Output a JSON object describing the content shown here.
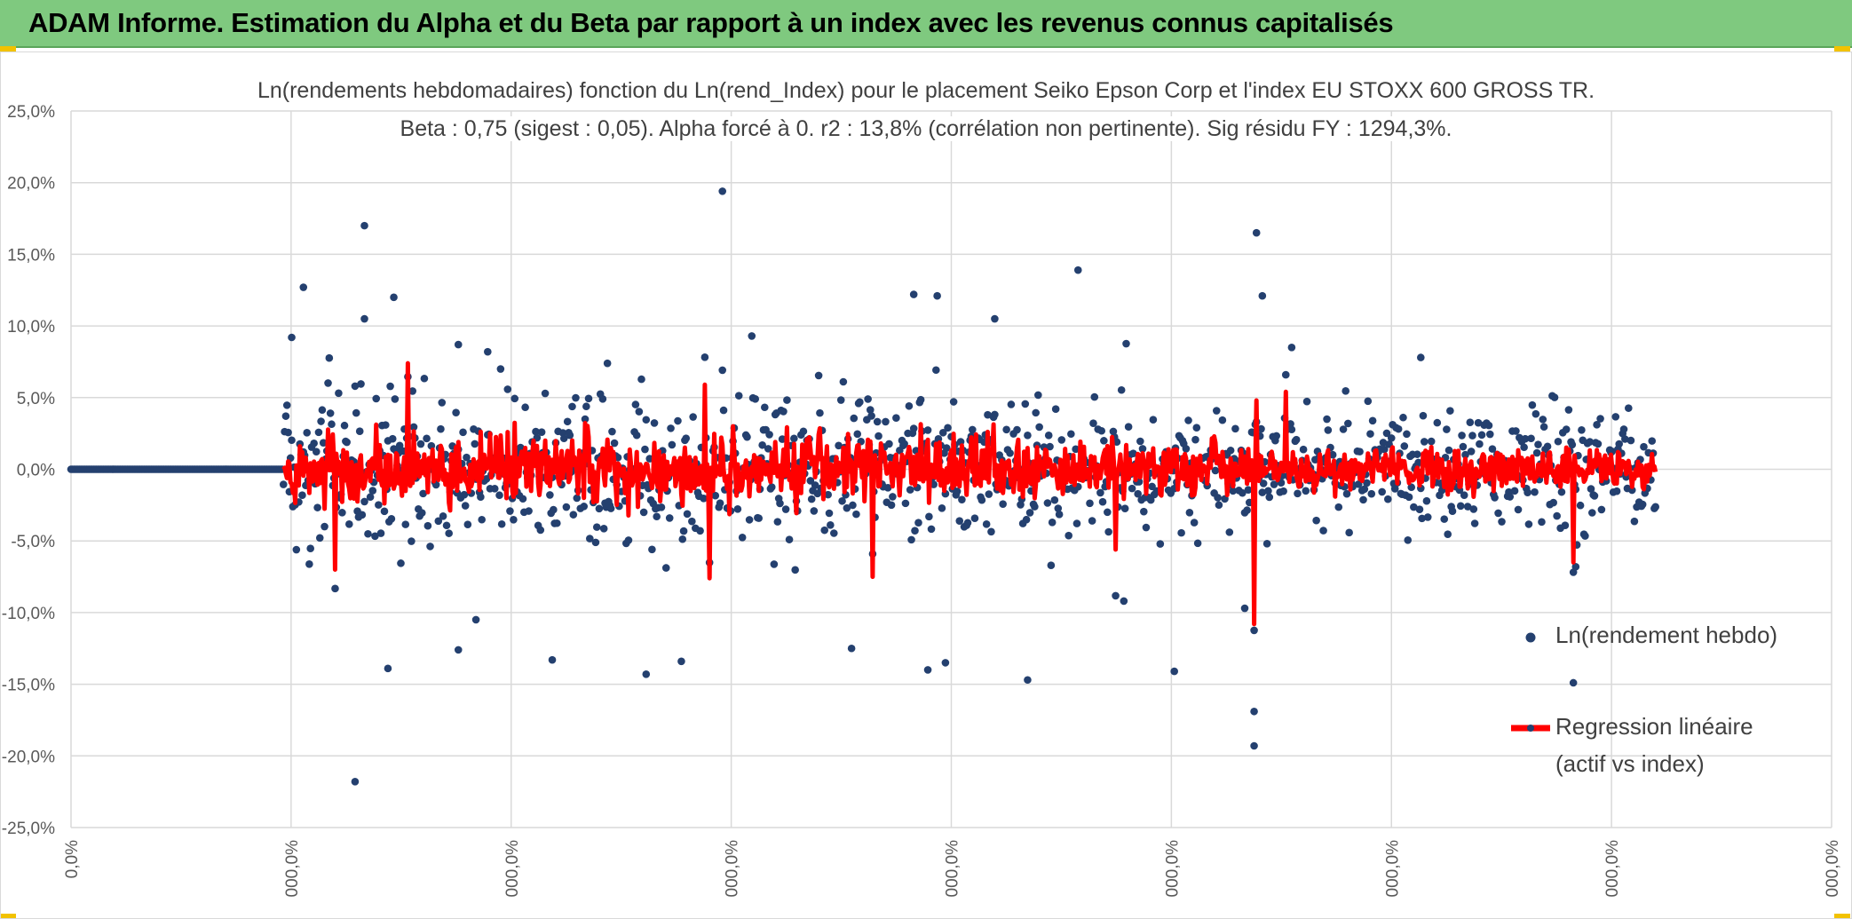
{
  "header": {
    "title": "ADAM Informe. Estimation du Alpha et du Beta par rapport à un index avec les revenus connus capitalisés",
    "accent": "#7fc97f"
  },
  "chart_data": {
    "type": "scatter",
    "title": "Ln(rendements hebdomadaires) fonction du Ln(rend_Index) pour le placement Seiko Epson Corp et l'index EU STOXX 600 GROSS TR.",
    "subtitle": "Beta : 0,75 (sigest : 0,05). Alpha forcé à 0. r2 : 13,8% (corrélation non pertinente). Sig résidu FY : 1294,3%.",
    "y_ticks": [
      "25,0%",
      "20,0%",
      "15,0%",
      "10,0%",
      "5,0%",
      "0,0%",
      "-5,0%",
      "-10,0%",
      "-15,0%",
      "-20,0%",
      "-25,0%"
    ],
    "ylim": [
      -25,
      25
    ],
    "x_ticks": [
      "0,0%",
      "000,0%",
      "000,0%",
      "000,0%",
      "000,0%",
      "000,0%",
      "000,0%",
      "000,0%",
      "000,0%"
    ],
    "xlim": [
      0,
      1500
    ],
    "series": [
      {
        "name": "Ln(rendement hebdo)",
        "kind": "scatter",
        "color": "#24406f",
        "zero_run": [
          0,
          180
        ],
        "active_range": [
          181,
          1350
        ],
        "notable_points": [
          {
            "x": 188,
            "y": 9.2
          },
          {
            "x": 198,
            "y": 12.7
          },
          {
            "x": 242,
            "y": -21.8
          },
          {
            "x": 242,
            "y": 5.8
          },
          {
            "x": 250,
            "y": 17.0
          },
          {
            "x": 250,
            "y": 10.5
          },
          {
            "x": 275,
            "y": 12.0
          },
          {
            "x": 270,
            "y": -13.9
          },
          {
            "x": 330,
            "y": 8.7
          },
          {
            "x": 330,
            "y": -12.6
          },
          {
            "x": 345,
            "y": -10.5
          },
          {
            "x": 355,
            "y": 8.2
          },
          {
            "x": 410,
            "y": -13.3
          },
          {
            "x": 490,
            "y": -14.3
          },
          {
            "x": 555,
            "y": 19.4
          },
          {
            "x": 520,
            "y": -13.4
          },
          {
            "x": 580,
            "y": 9.3
          },
          {
            "x": 665,
            "y": -12.5
          },
          {
            "x": 718,
            "y": 12.2
          },
          {
            "x": 730,
            "y": -14.0
          },
          {
            "x": 738,
            "y": 12.1
          },
          {
            "x": 745,
            "y": -13.5
          },
          {
            "x": 787,
            "y": 10.5
          },
          {
            "x": 815,
            "y": -14.7
          },
          {
            "x": 858,
            "y": 13.9
          },
          {
            "x": 940,
            "y": -14.1
          },
          {
            "x": 1000,
            "y": -9.7
          },
          {
            "x": 1010,
            "y": 16.5
          },
          {
            "x": 1015,
            "y": 12.1
          },
          {
            "x": 1008,
            "y": -16.9
          },
          {
            "x": 1008,
            "y": -19.3
          },
          {
            "x": 1040,
            "y": 8.5
          },
          {
            "x": 1150,
            "y": 7.8
          },
          {
            "x": 1280,
            "y": -14.9
          },
          {
            "x": 1282,
            "y": -6.8
          }
        ]
      },
      {
        "name": "Regression linéaire",
        "name_line2": "(actif vs index)",
        "kind": "line",
        "color": "#ff0000",
        "slope": 0.75,
        "intercept": 0,
        "notable_values": [
          {
            "x": 225,
            "y": -7.0
          },
          {
            "x": 287,
            "y": 7.4
          },
          {
            "x": 540,
            "y": 5.9
          },
          {
            "x": 544,
            "y": -7.6
          },
          {
            "x": 683,
            "y": -7.5
          },
          {
            "x": 890,
            "y": -5.6
          },
          {
            "x": 1008,
            "y": -10.8
          },
          {
            "x": 1010,
            "y": 4.8
          },
          {
            "x": 1035,
            "y": 5.4
          },
          {
            "x": 1280,
            "y": -6.5
          }
        ]
      }
    ],
    "grid": true,
    "legend": "right"
  }
}
